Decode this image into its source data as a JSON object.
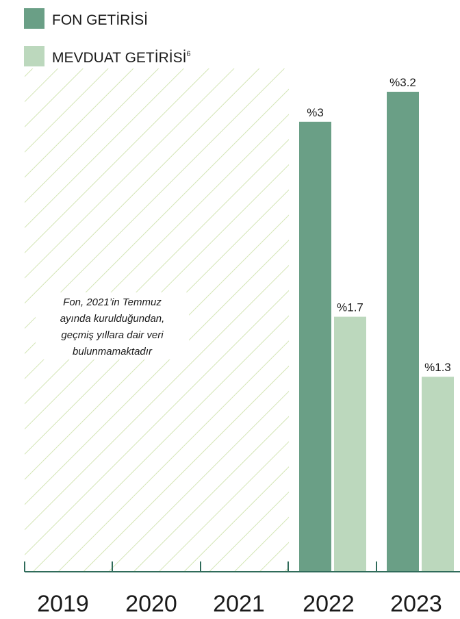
{
  "chart_data": {
    "type": "bar",
    "categories": [
      "2019",
      "2020",
      "2021",
      "2022",
      "2023"
    ],
    "series": [
      {
        "name": "FON GETİRİSİ",
        "values": [
          null,
          null,
          null,
          3,
          3.2
        ]
      },
      {
        "name": "MEVDUAT GETİRİSİ",
        "values": [
          null,
          null,
          null,
          1.7,
          1.3
        ]
      }
    ],
    "value_labels": {
      "fon": [
        "",
        "",
        "",
        "%3",
        "%3.2"
      ],
      "mevduat": [
        "",
        "",
        "",
        "%1.7",
        "%1.3"
      ]
    },
    "legend": {
      "fon_label": "FON GETİRİSİ",
      "mevduat_label": "MEVDUAT GETİRİSİ",
      "mevduat_superscript": "6",
      "position": "top-left"
    },
    "note_lines": [
      "Fon, 2021’in Temmuz",
      "ayında kurulduğundan,",
      "geçmiş yıllara dair veri",
      "bulunmamaktadır"
    ],
    "no_data_categories": [
      "2019",
      "2020",
      "2021"
    ],
    "ylim": [
      0,
      3.2
    ],
    "grid": false,
    "colors": {
      "fon": "#6a9f86",
      "mevduat": "#bcd8bd",
      "hatch": "#d3e5b5",
      "axis": "#2f6b5a"
    }
  }
}
